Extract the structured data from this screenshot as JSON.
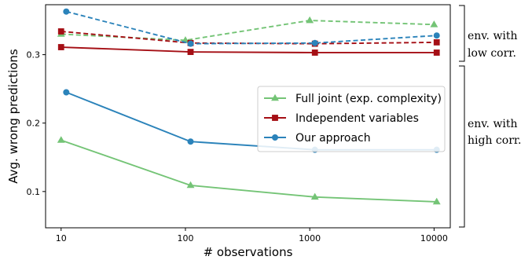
{
  "chart_data": {
    "type": "line",
    "xlabel": "# observations",
    "ylabel": "Avg. wrong predictions",
    "x_scale": "log",
    "xlim": [
      7.5,
      13500
    ],
    "ylim": [
      0.047,
      0.373
    ],
    "xticks": [
      10,
      100,
      1000,
      10000
    ],
    "xtick_labels": [
      "10",
      "100",
      "1000",
      "10000"
    ],
    "yticks": [
      0.1,
      0.2,
      0.3
    ],
    "ytick_labels": [
      "0.1",
      "0.2",
      "0.3"
    ],
    "grid": false,
    "legend_position": "center-right",
    "series": [
      {
        "name": "Full joint (exp. complexity)",
        "group": "high",
        "style": "solid",
        "marker": "triangle",
        "color": "#74c476",
        "x": [
          10,
          110,
          1100,
          10500
        ],
        "y": [
          0.175,
          0.109,
          0.092,
          0.085
        ]
      },
      {
        "name": "Independent variables",
        "group": "high",
        "style": "solid",
        "marker": "square",
        "color": "#a50f15",
        "x": [
          10,
          110,
          1100,
          10500
        ],
        "y": [
          0.311,
          0.304,
          0.303,
          0.303
        ]
      },
      {
        "name": "Our approach",
        "group": "high",
        "style": "solid",
        "marker": "circle",
        "color": "#2b83ba",
        "x": [
          11,
          110,
          1100,
          10500
        ],
        "y": [
          0.245,
          0.173,
          0.161,
          0.161
        ]
      },
      {
        "group": "low",
        "style": "dashed",
        "marker": "triangle",
        "color": "#74c476",
        "x": [
          10,
          100,
          1000,
          10000
        ],
        "y": [
          0.33,
          0.321,
          0.35,
          0.344
        ]
      },
      {
        "group": "low",
        "style": "dashed",
        "marker": "square",
        "color": "#a50f15",
        "x": [
          10,
          110,
          1100,
          10500
        ],
        "y": [
          0.334,
          0.317,
          0.316,
          0.318
        ]
      },
      {
        "group": "low",
        "style": "dashed",
        "marker": "circle",
        "color": "#2b83ba",
        "x": [
          11,
          110,
          1100,
          10500
        ],
        "y": [
          0.363,
          0.316,
          0.317,
          0.328
        ]
      }
    ],
    "annotations": [
      {
        "lines": [
          "env. with",
          "low corr."
        ],
        "group": "low"
      },
      {
        "lines": [
          "env. with",
          "high corr."
        ],
        "group": "high"
      }
    ]
  }
}
